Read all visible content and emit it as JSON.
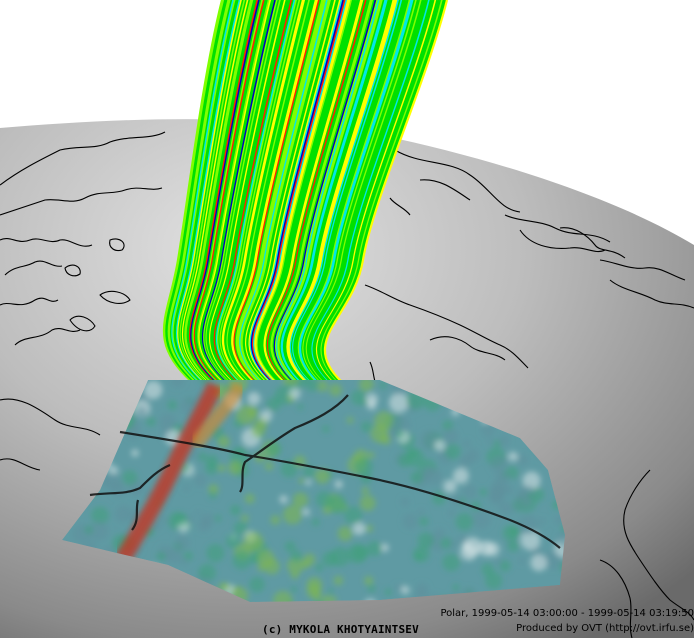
{
  "image": {
    "credit": "(c) MYKOLA KHOTYAINTSEV",
    "info_line_1": "Polar, 1999-05-14 03:00:00 - 1999-05-14 03:19:50",
    "info_line_2": "Produced by OVT (http://ovt.irfu.se)"
  },
  "colors": {
    "background": "#ffffff",
    "globe_light": "#d6d6d6",
    "globe_dark": "#6e6e6e",
    "coastline": "#000000",
    "fieldline_palette": [
      "#00e000",
      "#7fff00",
      "#ffff00",
      "#00e8e8",
      "#ff2200",
      "#0000c0"
    ],
    "image_palette": [
      "#5e8f9c",
      "#3fa17a",
      "#7fb84a",
      "#c4c23a",
      "#d98a2b",
      "#c8331f"
    ]
  }
}
